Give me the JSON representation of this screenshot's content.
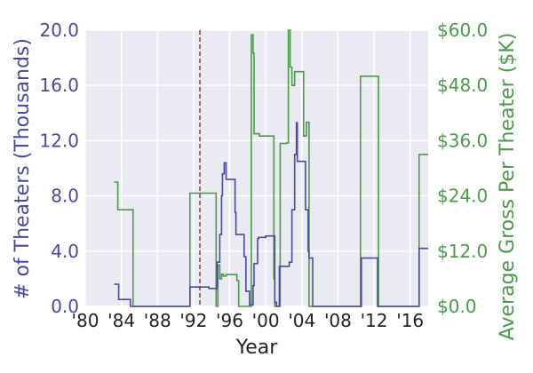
{
  "chart_data": {
    "type": "line",
    "step": "post",
    "xlabel": "Year",
    "ylabel_left": "# of Theaters (Thousands)",
    "ylabel_right": "Average Gross Per Theater ($K)",
    "xlim": [
      1980,
      2018
    ],
    "ylim_left": [
      0,
      20
    ],
    "ylim_right": [
      0,
      60
    ],
    "grid": true,
    "x_ticks": [
      1980,
      1984,
      1988,
      1992,
      1996,
      2000,
      2004,
      2008,
      2012,
      2016
    ],
    "x_tick_labels": [
      "'80",
      "'84",
      "'88",
      "'92",
      "'96",
      "'00",
      "'04",
      "'08",
      "'12",
      "'16"
    ],
    "y_left_ticks": [
      0,
      4,
      8,
      12,
      16,
      20
    ],
    "y_left_tick_labels": [
      "0.0",
      "4.0",
      "8.0",
      "12.0",
      "16.0",
      "20.0"
    ],
    "y_right_ticks": [
      0,
      12,
      24,
      36,
      48,
      60
    ],
    "y_right_tick_labels": [
      "$0.0",
      "$12.0",
      "$24.0",
      "$36.0",
      "$48.0",
      "$60.0"
    ],
    "reference_line": {
      "x": 1992.7,
      "style": "dashed",
      "color": "#8b3a3a"
    },
    "series": [
      {
        "axis": "left",
        "color": "#4a4a9c",
        "x": [
          1983.2,
          1983.7,
          1985.0,
          1991.6,
          1992.5,
          1993.7,
          1994.6,
          1994.9,
          1995.1,
          1995.2,
          1995.4,
          1995.6,
          1995.8,
          1996.6,
          1996.7,
          1997.6,
          1997.8,
          1998.2,
          1998.6,
          1998.7,
          1999.1,
          1999.2,
          2000.0,
          2001.0,
          2001.2,
          2001.5,
          2002.6,
          2002.9,
          2003.2,
          2003.4,
          2003.5,
          2003.7,
          2004.4,
          2004.7,
          2004.8,
          2005.2,
          2010.6,
          2012.4,
          2017.0,
          2018.0
        ],
        "values": [
          1.6,
          0.5,
          0.0,
          1.4,
          1.4,
          1.3,
          3.2,
          5.2,
          8.0,
          9.6,
          10.4,
          9.2,
          9.2,
          6.8,
          5.2,
          3.6,
          1.1,
          0.1,
          1.5,
          3.1,
          4.9,
          5.0,
          5.1,
          0.3,
          0.0,
          2.9,
          3.2,
          7.0,
          11.0,
          13.3,
          10.5,
          10.5,
          7.0,
          4.0,
          3.5,
          0.0,
          3.5,
          0.0,
          4.2,
          4.2
        ]
      },
      {
        "axis": "right",
        "color": "#4a9a4a",
        "x": [
          1983.2,
          1983.6,
          1985.0,
          1985.3,
          1991.6,
          1994.5,
          1994.7,
          1994.9,
          1995.1,
          1995.3,
          1995.6,
          1996.8,
          1997.0,
          1998.4,
          1998.6,
          1998.7,
          1999.3,
          2000.9,
          2001.0,
          2001.3,
          2001.6,
          2002.3,
          2002.5,
          2002.7,
          2002.9,
          2003.2,
          2004.2,
          2004.5,
          2004.8,
          2010.5,
          2012.5,
          2017.0,
          2018.0
        ],
        "values": [
          27.0,
          21.0,
          21.0,
          0.0,
          24.6,
          0.0,
          9.0,
          6.0,
          7.0,
          6.6,
          6.9,
          5.6,
          0.0,
          59.0,
          55.0,
          37.5,
          37.0,
          6.0,
          0.0,
          0.0,
          35.4,
          35.5,
          60.0,
          52.0,
          48.0,
          51.0,
          37.0,
          40.0,
          0.0,
          50.0,
          0.0,
          33.0,
          33.0
        ]
      }
    ]
  }
}
